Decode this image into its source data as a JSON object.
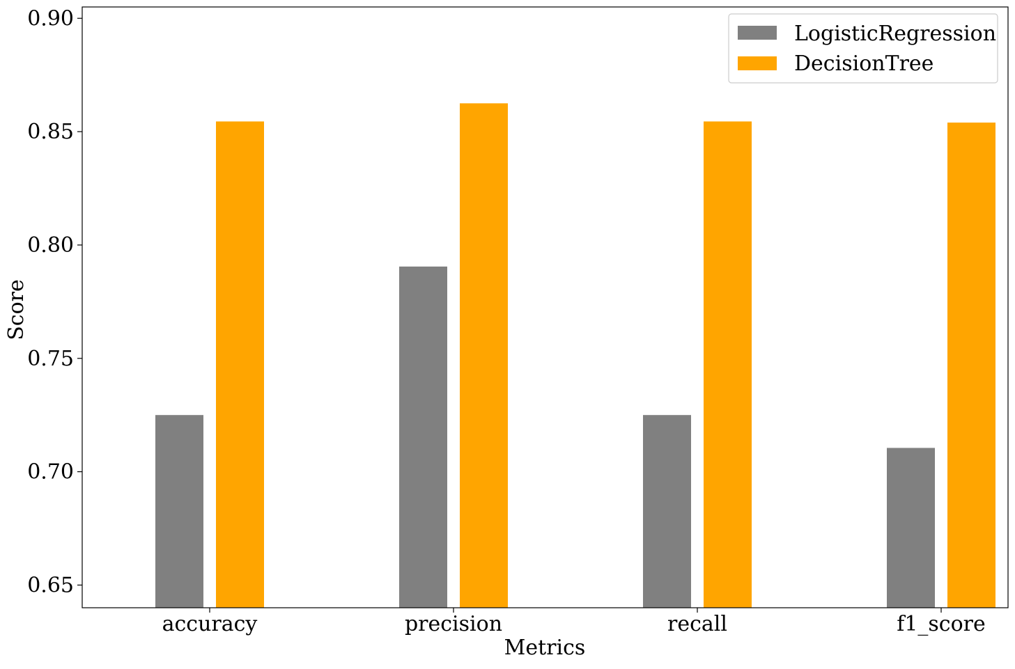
{
  "chart_data": {
    "type": "bar",
    "title": "",
    "xlabel": "Metrics",
    "ylabel": "Score",
    "categories": [
      "accuracy",
      "precision",
      "recall",
      "f1_score"
    ],
    "series": [
      {
        "name": "LogisticRegression",
        "color": "#808080",
        "values": [
          0.725,
          0.7905,
          0.725,
          0.7105
        ]
      },
      {
        "name": "DecisionTree",
        "color": "#ffa500",
        "values": [
          0.8545,
          0.8625,
          0.8545,
          0.854
        ]
      }
    ],
    "ylim": [
      0.64,
      0.905
    ],
    "yticks": [
      0.65,
      0.7,
      0.75,
      0.8,
      0.85,
      0.9
    ],
    "ytick_labels": [
      "0.65",
      "0.70",
      "0.75",
      "0.80",
      "0.85",
      "0.90"
    ],
    "grid": false,
    "legend_position": "top-right"
  }
}
